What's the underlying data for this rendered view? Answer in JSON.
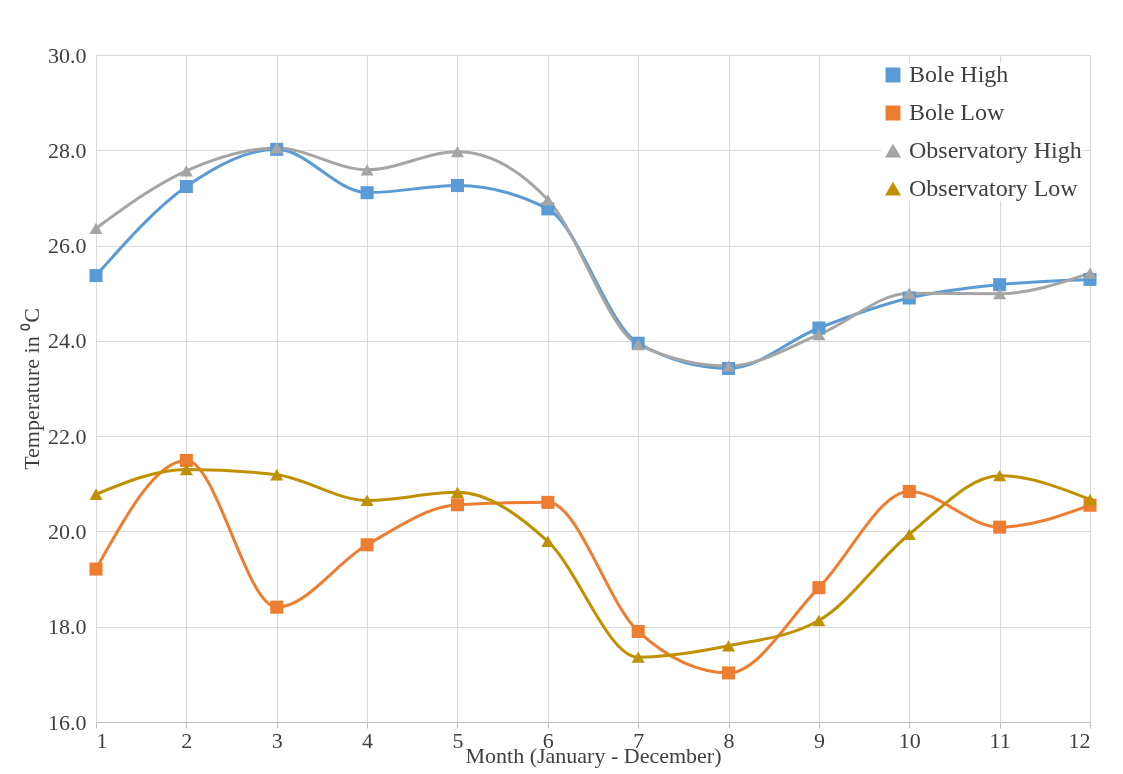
{
  "chart_data": {
    "type": "line",
    "xlabel": "Month (January - December)",
    "ylabel": "Temperature in ⁰C",
    "x": [
      1,
      2,
      3,
      4,
      5,
      6,
      7,
      8,
      9,
      10,
      11,
      12
    ],
    "xlim": [
      1,
      12
    ],
    "xticks": [
      1,
      2,
      3,
      4,
      5,
      6,
      7,
      8,
      9,
      10,
      11,
      12
    ],
    "ylim": [
      16,
      30
    ],
    "yticks": [
      {
        "value": 16,
        "label": "16.0"
      },
      {
        "value": 18,
        "label": "18.0"
      },
      {
        "value": 20,
        "label": "20.0"
      },
      {
        "value": 22,
        "label": "22.0"
      },
      {
        "value": 24,
        "label": "24.0"
      },
      {
        "value": 26,
        "label": "26.0"
      },
      {
        "value": 28,
        "label": "28.0"
      },
      {
        "value": 30,
        "label": "30.0"
      }
    ],
    "grid": true,
    "legend": "top right",
    "line_style": "solid",
    "series": [
      {
        "name": "Bole High",
        "color": "#5b9bd5",
        "marker": "square",
        "values": [
          25.37,
          27.24,
          28.02,
          27.11,
          27.26,
          26.77,
          23.95,
          23.42,
          24.27,
          24.9,
          25.18,
          25.29
        ]
      },
      {
        "name": "Bole Low",
        "color": "#ed7d31",
        "marker": "square",
        "values": [
          19.21,
          21.49,
          18.41,
          19.72,
          20.56,
          20.61,
          17.9,
          17.03,
          18.82,
          20.84,
          20.09,
          20.55
        ]
      },
      {
        "name": "Observatory High",
        "color": "#a5a5a5",
        "marker": "triangle",
        "values": [
          26.36,
          27.57,
          28.05,
          27.59,
          27.97,
          26.96,
          23.92,
          23.47,
          24.13,
          25.0,
          24.99,
          25.42
        ]
      },
      {
        "name": "Observatory Low",
        "color": "#bf9000",
        "marker": "triangle",
        "values": [
          20.78,
          21.3,
          21.19,
          20.65,
          20.82,
          19.79,
          17.36,
          17.6,
          18.13,
          19.94,
          21.17,
          20.67
        ]
      }
    ]
  }
}
